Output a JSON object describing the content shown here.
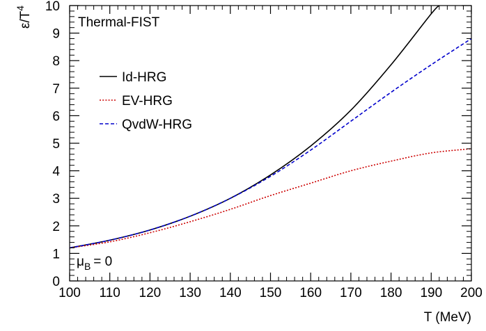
{
  "chart_data": {
    "type": "line",
    "title": "",
    "xlabel": "T (MeV)",
    "ylabel_main": "ε/T",
    "ylabel_sup": "4",
    "xlim": [
      100,
      200
    ],
    "ylim": [
      0,
      10
    ],
    "xticks": [
      "100",
      "110",
      "120",
      "130",
      "140",
      "150",
      "160",
      "170",
      "180",
      "190",
      "200"
    ],
    "yticks": [
      "0",
      "1",
      "2",
      "3",
      "4",
      "5",
      "6",
      "7",
      "8",
      "9",
      "10"
    ],
    "grid": false,
    "legend_position": "top-left",
    "annotations": {
      "label": "Thermal-FIST",
      "mu_symbol": "μ",
      "mu_sub": "B",
      "mu_value": "= 0"
    },
    "series": [
      {
        "name": "Id-HRG",
        "color": "#000000",
        "dash": "solid",
        "x": [
          100,
          110,
          120,
          130,
          140,
          150,
          160,
          170,
          180,
          190,
          192
        ],
        "y": [
          1.2,
          1.48,
          1.85,
          2.35,
          3.0,
          3.85,
          4.9,
          6.2,
          7.85,
          9.7,
          10.0
        ]
      },
      {
        "name": "EV-HRG",
        "color": "#cc0000",
        "dash": "dotted",
        "x": [
          100,
          110,
          120,
          130,
          140,
          150,
          160,
          170,
          180,
          190,
          200
        ],
        "y": [
          1.2,
          1.42,
          1.75,
          2.15,
          2.6,
          3.1,
          3.55,
          4.0,
          4.35,
          4.65,
          4.8
        ]
      },
      {
        "name": "QvdW-HRG",
        "color": "#0000cc",
        "dash": "dashed",
        "x": [
          100,
          110,
          120,
          130,
          140,
          150,
          160,
          170,
          180,
          190,
          200
        ],
        "y": [
          1.2,
          1.48,
          1.85,
          2.35,
          3.0,
          3.8,
          4.75,
          5.8,
          6.85,
          7.85,
          8.8
        ]
      }
    ]
  }
}
